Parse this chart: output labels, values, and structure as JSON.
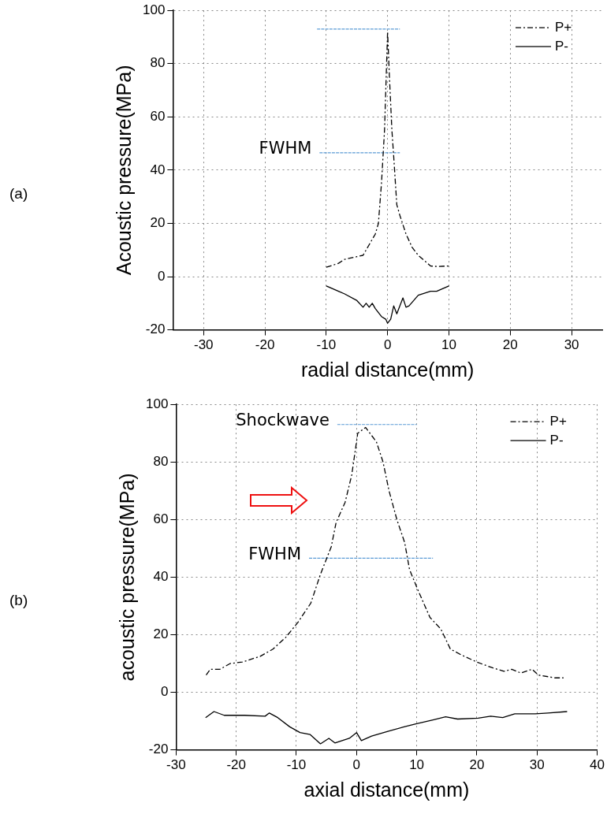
{
  "chart_data": [
    {
      "type": "line",
      "xlabel": "radial distance(mm)",
      "ylabel": "Acoustic pressure(MPa)",
      "annotations": [
        "(a)",
        "FWHM"
      ],
      "xlim": [
        -35,
        35
      ],
      "ylim": [
        -20,
        100
      ],
      "xticks": [
        -30,
        -20,
        -10,
        0,
        10,
        20,
        30
      ],
      "yticks": [
        -20,
        0,
        20,
        40,
        60,
        80,
        100
      ],
      "grid": true,
      "legend": "top right",
      "series": [
        {
          "name": "P+",
          "color": "#000000",
          "line_style": "dashed",
          "x": [
            -10,
            -8,
            -7,
            -5,
            -4,
            -3,
            -2,
            -1.5,
            -1,
            -0.5,
            0,
            0.3,
            0.7,
            1,
            1.5,
            2,
            3,
            4,
            5,
            7,
            8,
            10
          ],
          "values": [
            3.5,
            5,
            6.5,
            7.5,
            8,
            12,
            16,
            20,
            35,
            55,
            92,
            75,
            55,
            45,
            27,
            23,
            16,
            11,
            8,
            4,
            3.8,
            4
          ]
        },
        {
          "name": "P-",
          "color": "#000000",
          "line_style": "solid",
          "x": [
            -10,
            -8,
            -7,
            -5,
            -4,
            -3.5,
            -3,
            -2.5,
            -2,
            -1,
            -0.3,
            0,
            0.5,
            1,
            1.5,
            2.5,
            3,
            3.5,
            5,
            7,
            8,
            10
          ],
          "values": [
            -3.5,
            -5.5,
            -6.5,
            -9,
            -11.5,
            -10,
            -11.5,
            -10,
            -12,
            -15,
            -16,
            -17.5,
            -16,
            -11,
            -14,
            -8,
            -11.5,
            -11,
            -7,
            -5.5,
            -5.5,
            -3.5
          ]
        },
        {
          "color": "#5b9bd5",
          "line_style": "dashed",
          "x": [
            -11.5,
            2
          ],
          "values": [
            93,
            93
          ]
        },
        {
          "color": "#5b9bd5",
          "line_style": "dashed",
          "x": [
            -11.1,
            2
          ],
          "values": [
            46.5,
            46.5
          ]
        }
      ]
    },
    {
      "type": "line",
      "xlabel": "axial distance(mm)",
      "ylabel": "acoustic pressure(MPa)",
      "annotations": [
        "(b)",
        "Shockwave",
        "FWHM"
      ],
      "xlim": [
        -30,
        40
      ],
      "ylim": [
        -20,
        100
      ],
      "xticks": [
        -30,
        -20,
        -10,
        0,
        10,
        20,
        30,
        40
      ],
      "yticks": [
        -20,
        0,
        20,
        40,
        60,
        80,
        100
      ],
      "grid": true,
      "legend": "top right",
      "series": [
        {
          "name": "P+",
          "color": "#000000",
          "line_style": "dashed",
          "x": [
            -25,
            -24.3,
            -22.7,
            -21,
            -19,
            -16,
            -13.9,
            -11.8,
            -9.7,
            -7.6,
            -6,
            -4.2,
            -3.4,
            -1.9,
            -0.8,
            0.2,
            1.5,
            3.3,
            4.4,
            5.4,
            6.7,
            8,
            8.8,
            10.1,
            12.2,
            14,
            15.6,
            17.4,
            20,
            22.6,
            24.5,
            25.8,
            27.3,
            29.2,
            30.2,
            33,
            34.4
          ],
          "values": [
            6,
            8,
            8,
            10,
            10.5,
            12.5,
            15,
            19,
            24.4,
            31,
            41,
            50.6,
            59,
            66,
            75.5,
            90,
            92,
            87,
            80,
            70,
            60,
            52,
            42.7,
            36,
            26,
            22,
            15,
            13,
            10.5,
            8.5,
            7.3,
            8,
            6.7,
            8,
            6,
            5,
            5
          ]
        },
        {
          "name": "P-",
          "color": "#000000",
          "line_style": "solid",
          "x": [
            -25.1,
            -23.7,
            -22,
            -18.6,
            -15.2,
            -14.5,
            -13.1,
            -11.1,
            -9.4,
            -7.7,
            -6,
            -4.6,
            -3.6,
            -1.2,
            0,
            0.8,
            2.5,
            5.2,
            7.9,
            10,
            12.7,
            14.8,
            16.8,
            20.2,
            22.3,
            24.3,
            26.3,
            29.7,
            31.8,
            35
          ],
          "values": [
            -8.8,
            -6.7,
            -8,
            -8,
            -8.3,
            -7.2,
            -8.8,
            -12,
            -14,
            -14.7,
            -17.9,
            -16,
            -17.6,
            -16,
            -14,
            -16.8,
            -15.2,
            -13.6,
            -12,
            -10.9,
            -9.6,
            -8.5,
            -9.3,
            -9,
            -8.3,
            -8.8,
            -7.5,
            -7.5,
            -7.2,
            -6.7
          ]
        },
        {
          "color": "#5b9bd5",
          "line_style": "dashed",
          "x": [
            -3.2,
            10
          ],
          "values": [
            93,
            93
          ]
        },
        {
          "color": "#5b9bd5",
          "line_style": "dashed",
          "x": [
            -7.9,
            12.7
          ],
          "values": [
            46.6,
            46.6
          ]
        }
      ]
    }
  ]
}
